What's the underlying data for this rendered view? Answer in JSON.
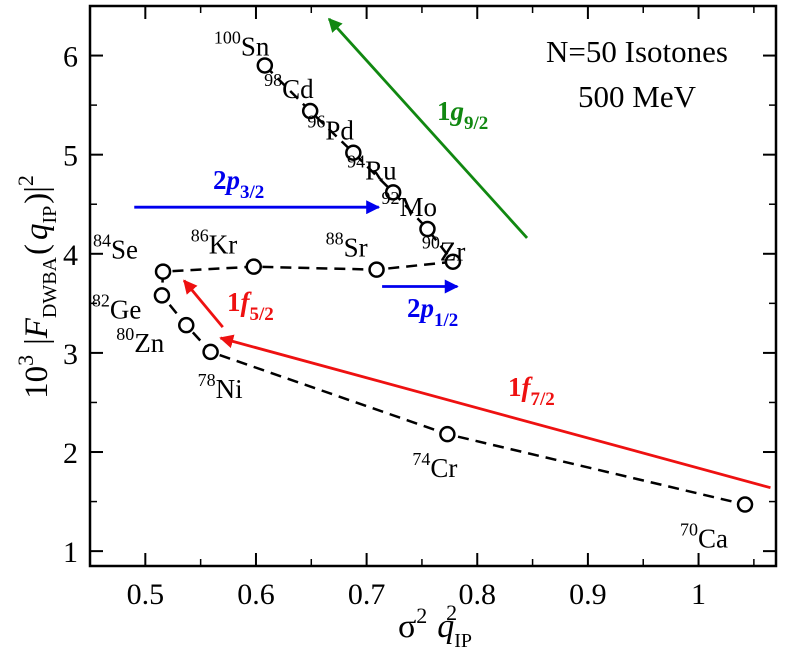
{
  "chart_data": {
    "type": "scatter",
    "title": "N=50 Isotones",
    "subtitle": "500 MeV",
    "xlabel": {
      "main": "σ",
      "sup": "2",
      "mid": "q",
      "sub": "IP",
      "sup2": "2"
    },
    "ylabel": {
      "pre": "10",
      "pre_sup": "3",
      "bar": "|",
      "F": "F",
      "F_sub": "DWBA",
      "open": "(",
      "q": "q",
      "q_sub": "IP",
      "close": ")",
      "bar2": "|",
      "sup": "2"
    },
    "xlim": [
      0.45,
      1.07
    ],
    "ylim": [
      0.85,
      6.5
    ],
    "xticks": [
      0.5,
      0.6,
      0.7,
      0.8,
      0.9,
      1
    ],
    "xtick_labels": [
      "0.5",
      "0.6",
      "0.7",
      "0.8",
      "0.9",
      "1"
    ],
    "yticks": [
      1,
      2,
      3,
      4,
      5,
      6
    ],
    "ytick_labels": [
      "1",
      "2",
      "3",
      "4",
      "5",
      "6"
    ],
    "points": [
      {
        "x": 0.608,
        "y": 5.9,
        "mass": "100",
        "sym": "Sn"
      },
      {
        "x": 0.649,
        "y": 5.44,
        "mass": "98",
        "sym": "Cd"
      },
      {
        "x": 0.688,
        "y": 5.02,
        "mass": "96",
        "sym": "Pd"
      },
      {
        "x": 0.724,
        "y": 4.62,
        "mass": "94",
        "sym": "Ru"
      },
      {
        "x": 0.755,
        "y": 4.25,
        "mass": "92",
        "sym": "Mo"
      },
      {
        "x": 0.778,
        "y": 3.92,
        "mass": "90",
        "sym": "Zr"
      },
      {
        "x": 0.709,
        "y": 3.84,
        "mass": "88",
        "sym": "Sr"
      },
      {
        "x": 0.598,
        "y": 3.87,
        "mass": "86",
        "sym": "Kr"
      },
      {
        "x": 0.516,
        "y": 3.82,
        "mass": "84",
        "sym": "Se"
      },
      {
        "x": 0.515,
        "y": 3.58,
        "mass": "82",
        "sym": "Ge"
      },
      {
        "x": 0.537,
        "y": 3.28,
        "mass": "80",
        "sym": "Zn"
      },
      {
        "x": 0.559,
        "y": 3.01,
        "mass": "78",
        "sym": "Ni"
      },
      {
        "x": 0.773,
        "y": 2.18,
        "mass": "74",
        "sym": "Cr"
      },
      {
        "x": 1.042,
        "y": 1.47,
        "mass": "70",
        "sym": "Ca"
      }
    ],
    "paths": [
      [
        0,
        1,
        2,
        3,
        4,
        5
      ],
      [
        5,
        6,
        7,
        8
      ],
      [
        8,
        9,
        10,
        11,
        12,
        13
      ]
    ],
    "arrows": [
      {
        "name": "1g9/2",
        "color": "#118811",
        "from": [
          0.845,
          4.16
        ],
        "to": [
          0.666,
          6.37
        ]
      },
      {
        "name": "2p3/2",
        "color": "#0000ee",
        "from": [
          0.49,
          4.47
        ],
        "to": [
          0.711,
          4.47
        ]
      },
      {
        "name": "2p1/2",
        "color": "#0000ee",
        "from": [
          0.714,
          3.67
        ],
        "to": [
          0.782,
          3.67
        ]
      },
      {
        "name": "1f5/2",
        "color": "#ee1111",
        "from": [
          0.57,
          3.26
        ],
        "to": [
          0.535,
          3.73
        ]
      },
      {
        "name": "1f7/2",
        "color": "#ee1111",
        "from": [
          1.065,
          1.64
        ],
        "to": [
          0.568,
          3.15
        ]
      }
    ],
    "arrow_labels": [
      {
        "num": "1",
        "l": "g",
        "sub": "9/2",
        "color": "#118811"
      },
      {
        "num": "2",
        "l": "p",
        "sub": "3/2",
        "color": "#0000ee"
      },
      {
        "num": "2",
        "l": "p",
        "sub": "1/2",
        "color": "#0000ee"
      },
      {
        "num": "1",
        "l": "f",
        "sub": "5/2",
        "color": "#ee1111"
      },
      {
        "num": "1",
        "l": "f",
        "sub": "7/2",
        "color": "#ee1111"
      }
    ]
  }
}
